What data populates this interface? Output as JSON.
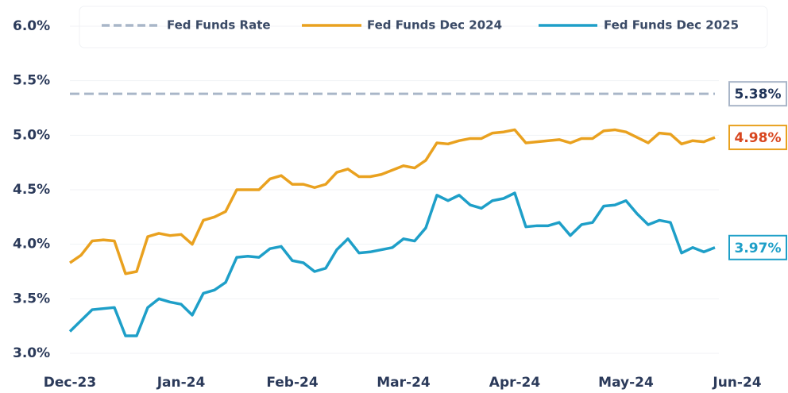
{
  "chart_data": {
    "type": "line",
    "categories": [
      "Dec-23",
      null,
      null,
      null,
      null,
      null,
      null,
      null,
      null,
      null,
      "Jan-24",
      null,
      null,
      null,
      null,
      null,
      null,
      null,
      null,
      null,
      "Feb-24",
      null,
      null,
      null,
      null,
      null,
      null,
      null,
      null,
      null,
      "Mar-24",
      null,
      null,
      null,
      null,
      null,
      null,
      null,
      null,
      null,
      "Apr-24",
      null,
      null,
      null,
      null,
      null,
      null,
      null,
      null,
      null,
      "May-24",
      null,
      null,
      null,
      null,
      null,
      null,
      null,
      null,
      null,
      "Jun-24"
    ],
    "series": [
      {
        "name": "Fed Funds Rate",
        "color": "#a9b6c8",
        "dashed": true,
        "end_label": "5.38%",
        "label_color": "#1f3358",
        "values": [
          5.38,
          5.38,
          5.38,
          5.38,
          5.38,
          5.38,
          5.38,
          5.38,
          5.38,
          5.38,
          5.38,
          5.38,
          5.38,
          5.38,
          5.38,
          5.38,
          5.38,
          5.38,
          5.38,
          5.38,
          5.38,
          5.38,
          5.38,
          5.38,
          5.38,
          5.38,
          5.38,
          5.38,
          5.38,
          5.38,
          5.38,
          5.38,
          5.38,
          5.38,
          5.38,
          5.38,
          5.38,
          5.38,
          5.38,
          5.38,
          5.38,
          5.38,
          5.38,
          5.38,
          5.38,
          5.38,
          5.38,
          5.38,
          5.38,
          5.38,
          5.38,
          5.38,
          5.38,
          5.38,
          5.38,
          5.38,
          5.38,
          5.38,
          5.38,
          null,
          null
        ]
      },
      {
        "name": "Fed Funds Dec 2024",
        "color": "#e9a11f",
        "dashed": false,
        "end_label": "4.98%",
        "label_color": "#d8461f",
        "values": [
          3.83,
          3.9,
          4.03,
          4.04,
          4.03,
          3.73,
          3.75,
          4.07,
          4.1,
          4.08,
          4.09,
          4.0,
          4.22,
          4.25,
          4.3,
          4.5,
          4.5,
          4.5,
          4.6,
          4.63,
          4.55,
          4.55,
          4.52,
          4.55,
          4.66,
          4.69,
          4.62,
          4.62,
          4.64,
          4.68,
          4.72,
          4.7,
          4.77,
          4.93,
          4.92,
          4.95,
          4.97,
          4.97,
          5.02,
          5.03,
          5.05,
          4.93,
          4.94,
          4.95,
          4.96,
          4.93,
          4.97,
          4.97,
          5.04,
          5.05,
          5.03,
          4.98,
          4.93,
          5.02,
          5.01,
          4.92,
          4.95,
          4.94,
          4.98,
          null,
          null
        ]
      },
      {
        "name": "Fed Funds Dec 2025",
        "color": "#1e9fc8",
        "dashed": false,
        "end_label": "3.97%",
        "label_color": "#1e9fc8",
        "values": [
          3.2,
          3.3,
          3.4,
          3.41,
          3.42,
          3.16,
          3.16,
          3.42,
          3.5,
          3.47,
          3.45,
          3.35,
          3.55,
          3.58,
          3.65,
          3.88,
          3.89,
          3.88,
          3.96,
          3.98,
          3.85,
          3.83,
          3.75,
          3.78,
          3.95,
          4.05,
          3.92,
          3.93,
          3.95,
          3.97,
          4.05,
          4.03,
          4.15,
          4.45,
          4.4,
          4.45,
          4.36,
          4.33,
          4.4,
          4.42,
          4.47,
          4.16,
          4.17,
          4.17,
          4.2,
          4.08,
          4.18,
          4.2,
          4.35,
          4.36,
          4.4,
          4.28,
          4.18,
          4.22,
          4.2,
          3.92,
          3.97,
          3.93,
          3.97,
          null,
          null
        ]
      }
    ],
    "ylim": [
      3.0,
      6.0
    ],
    "yticks": [
      {
        "value": 3.0,
        "label": "3.0%"
      },
      {
        "value": 3.5,
        "label": "3.5%"
      },
      {
        "value": 4.0,
        "label": "4.0%"
      },
      {
        "value": 4.5,
        "label": "4.5%"
      },
      {
        "value": 5.0,
        "label": "5.0%"
      },
      {
        "value": 5.5,
        "label": "5.5%"
      },
      {
        "value": 6.0,
        "label": "6.0%"
      }
    ],
    "grid": true
  }
}
